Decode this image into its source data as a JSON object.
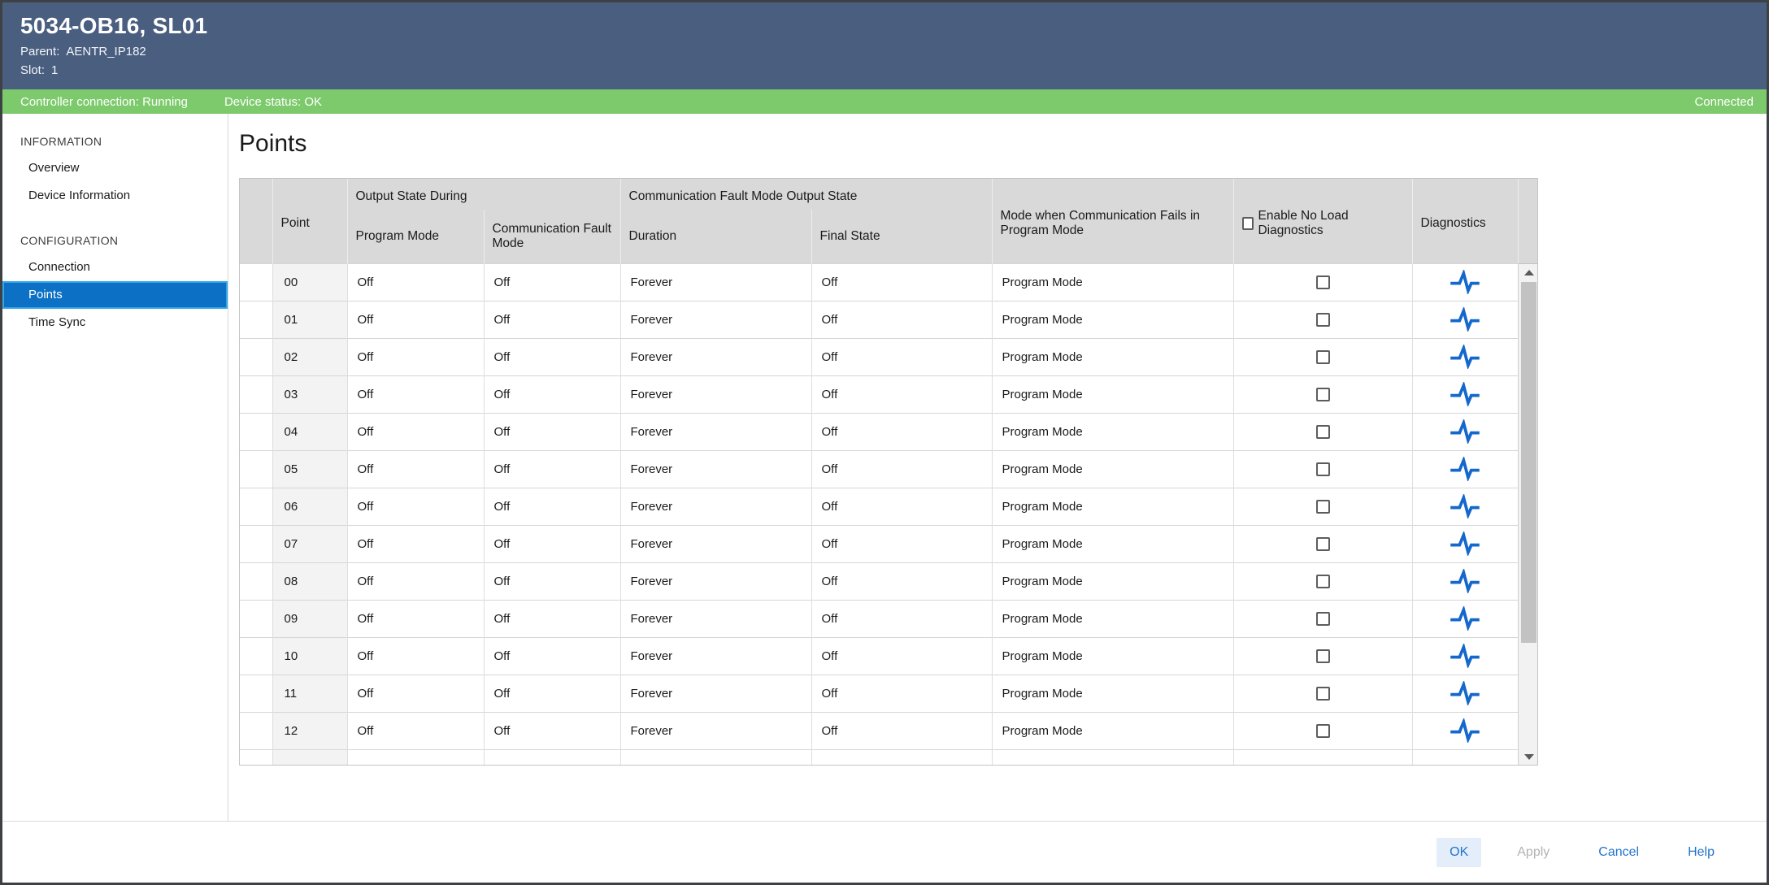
{
  "window": {
    "title": "5034-OB16, SL01",
    "parent_label": "Parent:",
    "parent_value": "AENTR_IP182",
    "slot_label": "Slot:",
    "slot_value": "1"
  },
  "status_bar": {
    "controller_connection": "Controller connection: Running",
    "device_status": "Device status: OK",
    "connection_state": "Connected",
    "bar_color": "#7cca6b"
  },
  "sidebar": {
    "sections": [
      {
        "label": "INFORMATION",
        "items": [
          {
            "label": "Overview",
            "selected": false
          },
          {
            "label": "Device Information",
            "selected": false
          }
        ]
      },
      {
        "label": "CONFIGURATION",
        "items": [
          {
            "label": "Connection",
            "selected": false
          },
          {
            "label": "Points",
            "selected": true
          },
          {
            "label": "Time Sync",
            "selected": false
          }
        ]
      }
    ],
    "selected_color": "#0c70c5",
    "selected_border_color": "#33a7ea"
  },
  "main": {
    "page_title": "Points",
    "table": {
      "group_headers": [
        {
          "label": "Output State During",
          "span": 2
        },
        {
          "label": "Communication Fault Mode Output State",
          "span": 2
        }
      ],
      "columns": [
        "Point",
        "Program Mode",
        "Communication Fault Mode",
        "Duration",
        "Final State",
        "Mode when Communication Fails in Program Mode",
        "Enable No Load Diagnostics",
        "Diagnostics"
      ],
      "header_checkbox_checked": false,
      "rows": [
        {
          "point": "00",
          "program_mode": "Off",
          "comm_fault_mode": "Off",
          "duration": "Forever",
          "final_state": "Off",
          "mode_when_comm_fails": "Program Mode",
          "enable_no_load": false
        },
        {
          "point": "01",
          "program_mode": "Off",
          "comm_fault_mode": "Off",
          "duration": "Forever",
          "final_state": "Off",
          "mode_when_comm_fails": "Program Mode",
          "enable_no_load": false
        },
        {
          "point": "02",
          "program_mode": "Off",
          "comm_fault_mode": "Off",
          "duration": "Forever",
          "final_state": "Off",
          "mode_when_comm_fails": "Program Mode",
          "enable_no_load": false
        },
        {
          "point": "03",
          "program_mode": "Off",
          "comm_fault_mode": "Off",
          "duration": "Forever",
          "final_state": "Off",
          "mode_when_comm_fails": "Program Mode",
          "enable_no_load": false
        },
        {
          "point": "04",
          "program_mode": "Off",
          "comm_fault_mode": "Off",
          "duration": "Forever",
          "final_state": "Off",
          "mode_when_comm_fails": "Program Mode",
          "enable_no_load": false
        },
        {
          "point": "05",
          "program_mode": "Off",
          "comm_fault_mode": "Off",
          "duration": "Forever",
          "final_state": "Off",
          "mode_when_comm_fails": "Program Mode",
          "enable_no_load": false
        },
        {
          "point": "06",
          "program_mode": "Off",
          "comm_fault_mode": "Off",
          "duration": "Forever",
          "final_state": "Off",
          "mode_when_comm_fails": "Program Mode",
          "enable_no_load": false
        },
        {
          "point": "07",
          "program_mode": "Off",
          "comm_fault_mode": "Off",
          "duration": "Forever",
          "final_state": "Off",
          "mode_when_comm_fails": "Program Mode",
          "enable_no_load": false
        },
        {
          "point": "08",
          "program_mode": "Off",
          "comm_fault_mode": "Off",
          "duration": "Forever",
          "final_state": "Off",
          "mode_when_comm_fails": "Program Mode",
          "enable_no_load": false
        },
        {
          "point": "09",
          "program_mode": "Off",
          "comm_fault_mode": "Off",
          "duration": "Forever",
          "final_state": "Off",
          "mode_when_comm_fails": "Program Mode",
          "enable_no_load": false
        },
        {
          "point": "10",
          "program_mode": "Off",
          "comm_fault_mode": "Off",
          "duration": "Forever",
          "final_state": "Off",
          "mode_when_comm_fails": "Program Mode",
          "enable_no_load": false
        },
        {
          "point": "11",
          "program_mode": "Off",
          "comm_fault_mode": "Off",
          "duration": "Forever",
          "final_state": "Off",
          "mode_when_comm_fails": "Program Mode",
          "enable_no_load": false
        },
        {
          "point": "12",
          "program_mode": "Off",
          "comm_fault_mode": "Off",
          "duration": "Forever",
          "final_state": "Off",
          "mode_when_comm_fails": "Program Mode",
          "enable_no_load": false
        }
      ],
      "diagnostics_icon": "pulse-waveform",
      "diagnostics_icon_color": "#1467cc"
    }
  },
  "footer": {
    "ok_label": "OK",
    "apply_label": "Apply",
    "cancel_label": "Cancel",
    "help_label": "Help"
  },
  "colors": {
    "titlebar": "#4a5e80",
    "status_green": "#7cca6b",
    "accent_blue": "#2374cc",
    "table_header_gray": "#d9d9d9"
  }
}
